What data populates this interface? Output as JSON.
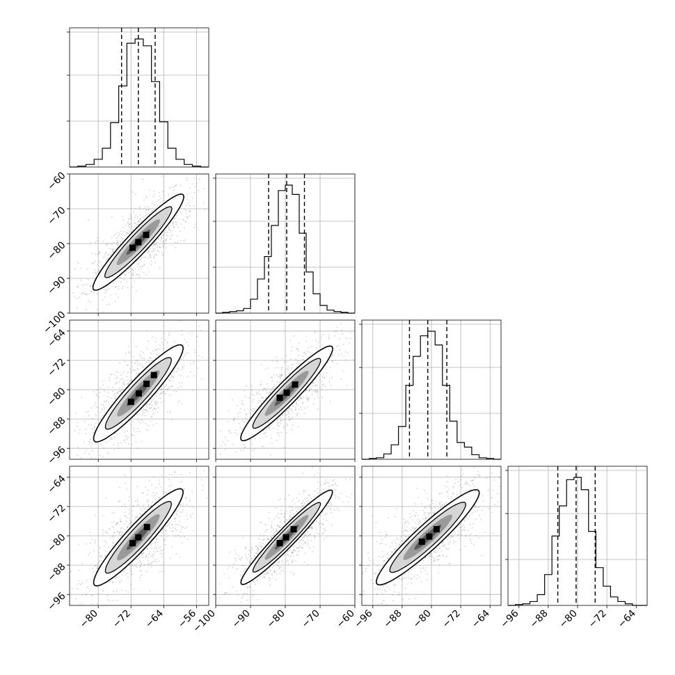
{
  "chart_data": {
    "type": "corner",
    "title": "",
    "grid": true,
    "colors": {
      "line": "#000000",
      "grid": "#b0b0b0",
      "scatter": "#7f7f7f",
      "background": "#ffffff"
    },
    "dimensions": [
      {
        "index": 0,
        "range": [
          -87,
          -53
        ],
        "ticks": [
          -80,
          -72,
          -64,
          -56
        ],
        "tick_labels": [
          "−80",
          "−72",
          "−64",
          "−56"
        ],
        "quantiles": [
          -74.3,
          -70.2,
          -66.1
        ],
        "hist_x": [
          -86,
          -84,
          -82,
          -80,
          -78,
          -76,
          -74,
          -72,
          -70,
          -68,
          -66,
          -64,
          -62,
          -60,
          -58,
          -56,
          -54
        ],
        "hist_counts": [
          0,
          1,
          3,
          9,
          22,
          52,
          95,
          145,
          150,
          142,
          100,
          53,
          22,
          9,
          3,
          1,
          0
        ]
      },
      {
        "index": 1,
        "range": [
          -100,
          -60
        ],
        "ticks": [
          -100,
          -90,
          -80,
          -70,
          -60
        ],
        "tick_labels": [
          "−100",
          "−90",
          "−80",
          "−70",
          "−60"
        ],
        "quantiles": [
          -84.8,
          -79.6,
          -74.5
        ],
        "hist_x": [
          -99,
          -97,
          -95,
          -93,
          -91,
          -89,
          -87,
          -85,
          -83,
          -81,
          -79,
          -77,
          -75,
          -73,
          -71,
          -69,
          -67,
          -65,
          -63,
          -61
        ],
        "hist_counts": [
          0,
          1,
          2,
          3,
          6,
          18,
          44,
          73,
          113,
          158,
          165,
          153,
          103,
          53,
          25,
          10,
          4,
          2,
          1,
          0
        ]
      },
      {
        "index": 2,
        "range": [
          -99,
          -61
        ],
        "ticks": [
          -96,
          -88,
          -80,
          -72,
          -64
        ],
        "tick_labels": [
          "−96",
          "−88",
          "−80",
          "−72",
          "−64"
        ],
        "quantiles": [
          -86.0,
          -81.0,
          -75.8
        ],
        "hist_x": [
          -98,
          -96,
          -94,
          -92,
          -90,
          -88,
          -86,
          -84,
          -82,
          -80,
          -78,
          -76,
          -74,
          -72,
          -70,
          -68,
          -66,
          -64,
          -62
        ],
        "hist_counts": [
          0,
          1,
          2,
          7,
          19,
          43,
          97,
          135,
          162,
          168,
          150,
          97,
          50,
          22,
          16,
          6,
          2,
          1,
          0
        ]
      },
      {
        "index": 3,
        "range": [
          -99,
          -61
        ],
        "ticks": [
          -96,
          -88,
          -80,
          -72,
          -64
        ],
        "tick_labels": [
          "−96",
          "−88",
          "−80",
          "−72",
          "−64"
        ],
        "quantiles": [
          -85.4,
          -80.4,
          -75.2
        ],
        "hist_x": [
          -98,
          -96,
          -94,
          -92,
          -90,
          -88,
          -86,
          -84,
          -82,
          -80,
          -78,
          -76,
          -74,
          -72,
          -70,
          -68,
          -66,
          -64,
          -62
        ],
        "hist_counts": [
          0,
          1,
          2,
          5,
          14,
          40,
          90,
          129,
          163,
          166,
          150,
          96,
          49,
          25,
          11,
          5,
          2,
          0,
          0
        ]
      }
    ],
    "correlations": [
      {
        "row": 1,
        "col": 0,
        "center": [
          -70.2,
          -79.6
        ],
        "slope": 1.25,
        "sigma_major": 5.2,
        "sigma_minor": 0.55,
        "dense_pixels": [
          [
            -68.3,
            -77.5
          ],
          [
            -70.2,
            -79.6
          ],
          [
            -71.6,
            -81.2
          ]
        ]
      },
      {
        "row": 2,
        "col": 0,
        "center": [
          -70.2,
          -81.0
        ],
        "slope": 1.22,
        "sigma_major": 5.1,
        "sigma_minor": 0.6,
        "dense_pixels": [
          [
            -66.4,
            -76.0
          ],
          [
            -68.2,
            -78.4
          ],
          [
            -70.1,
            -81.0
          ],
          [
            -72.0,
            -83.3
          ]
        ]
      },
      {
        "row": 2,
        "col": 1,
        "center": [
          -79.6,
          -81.0
        ],
        "slope": 0.98,
        "sigma_major": 6.2,
        "sigma_minor": 0.65,
        "dense_pixels": [
          [
            -77.2,
            -78.6
          ],
          [
            -79.6,
            -80.8
          ],
          [
            -81.6,
            -82.2
          ]
        ]
      },
      {
        "row": 3,
        "col": 0,
        "center": [
          -70.2,
          -80.4
        ],
        "slope": 1.22,
        "sigma_major": 5.1,
        "sigma_minor": 0.6,
        "dense_pixels": [
          [
            -68.1,
            -77.6
          ],
          [
            -70.2,
            -80.4
          ],
          [
            -71.6,
            -82.0
          ]
        ]
      },
      {
        "row": 3,
        "col": 1,
        "center": [
          -79.6,
          -80.4
        ],
        "slope": 0.98,
        "sigma_major": 6.2,
        "sigma_minor": 0.55,
        "dense_pixels": [
          [
            -77.6,
            -78.2
          ],
          [
            -79.8,
            -80.4
          ],
          [
            -81.6,
            -82.0
          ]
        ]
      },
      {
        "row": 3,
        "col": 2,
        "center": [
          -81.0,
          -80.4
        ],
        "slope": 0.92,
        "sigma_major": 6.6,
        "sigma_minor": 0.75,
        "dense_pixels": [
          [
            -78.6,
            -78.2
          ],
          [
            -80.6,
            -80.2
          ],
          [
            -82.6,
            -81.6
          ]
        ]
      }
    ]
  }
}
